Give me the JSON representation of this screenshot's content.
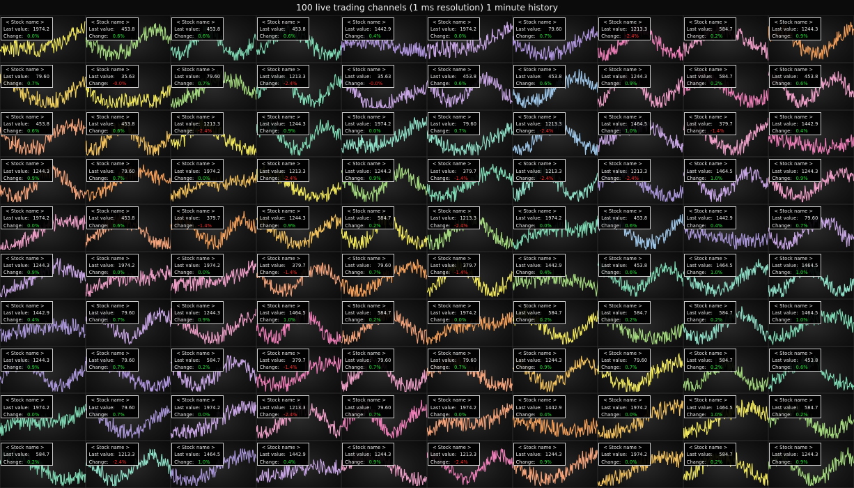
{
  "title": "100 live trading channels (1 ms resolution) 1 minute history",
  "labels": {
    "stock_name": "< Stock name >",
    "last_value": "Last value:",
    "change": "Change:"
  },
  "grid": {
    "rows": 10,
    "cols": 10
  },
  "colors": [
    "#f1e85c",
    "#a4d97e",
    "#7ed9b4",
    "#9ec6e8",
    "#c9a7e6",
    "#ef9fc7",
    "#f5a37a",
    "#e7c982",
    "#8fe0c8",
    "#a996d8",
    "#f48fb1",
    "#f2d36b",
    "#ff9f6b",
    "#83d7a5",
    "#c7a3e8"
  ],
  "channels": [
    {
      "value": "1974.2",
      "change": "0.0%",
      "color": "#f1e85c",
      "trend": "up"
    },
    {
      "value": "453.8",
      "change": "0.6%",
      "color": "#a4d97e",
      "trend": "down"
    },
    {
      "value": "453.8",
      "change": "0.6%",
      "color": "#7ed9b4",
      "trend": "wave"
    },
    {
      "value": "453.8",
      "change": "0.6%",
      "color": "#7ed9b4",
      "trend": "wave"
    },
    {
      "value": "1442.9",
      "change": "0.4%",
      "color": "#b197e0",
      "trend": "flat"
    },
    {
      "value": "1974.2",
      "change": "0.0%",
      "color": "#c9a7e6",
      "trend": "up"
    },
    {
      "value": "79.60",
      "change": "0.7%",
      "color": "#b197e0",
      "trend": "wave"
    },
    {
      "value": "1213.3",
      "change": "-2.4%",
      "color": "#ef7fb8",
      "trend": "wave"
    },
    {
      "value": "584.7",
      "change": "0.2%",
      "color": "#ef9fc7",
      "trend": "wave"
    },
    {
      "value": "1244.3",
      "change": "0.9%",
      "color": "#f5a05a",
      "trend": "wave"
    },
    {
      "value": "79.60",
      "change": "0.7%",
      "color": "#f1d15c",
      "trend": "wave"
    },
    {
      "value": "35.63",
      "change": "-0.0%",
      "color": "#f1e85c",
      "trend": "dip"
    },
    {
      "value": "79.60",
      "change": "0.7%",
      "color": "#a4d97e",
      "trend": "wave"
    },
    {
      "value": "1213.3",
      "change": "-2.4%",
      "color": "#7ed9b4",
      "trend": "wave"
    },
    {
      "value": "35.63",
      "change": "-0.0%",
      "color": "#c9a7e6",
      "trend": "dip"
    },
    {
      "value": "453.8",
      "change": "0.6%",
      "color": "#c9a7e6",
      "trend": "wave"
    },
    {
      "value": "453.8",
      "change": "0.6%",
      "color": "#9ec6e8",
      "trend": "wave"
    },
    {
      "value": "1244.3",
      "change": "0.9%",
      "color": "#ef9fc7",
      "trend": "wave"
    },
    {
      "value": "584.7",
      "change": "0.2%",
      "color": "#ef7fb8",
      "trend": "wave"
    },
    {
      "value": "453.8",
      "change": "0.6%",
      "color": "#ef9fc7",
      "trend": "wave"
    },
    {
      "value": "453.8",
      "change": "0.6%",
      "color": "#f5a37a",
      "trend": "wave"
    },
    {
      "value": "453.8",
      "change": "0.6%",
      "color": "#f2c15c",
      "trend": "wave"
    },
    {
      "value": "1213.3",
      "change": "-2.4%",
      "color": "#f1e85c",
      "trend": "wave"
    },
    {
      "value": "1244.3",
      "change": "0.9%",
      "color": "#7ed9b4",
      "trend": "wave"
    },
    {
      "value": "1974.2",
      "change": "0.0%",
      "color": "#8fe0c8",
      "trend": "up"
    },
    {
      "value": "79.60",
      "change": "0.7%",
      "color": "#8fe0c8",
      "trend": "wave"
    },
    {
      "value": "1213.3",
      "change": "-2.4%",
      "color": "#9ec6e8",
      "trend": "wave"
    },
    {
      "value": "1464.5",
      "change": "1.0%",
      "color": "#c9a7e6",
      "trend": "wave"
    },
    {
      "value": "379.7",
      "change": "-1.4%",
      "color": "#ef9fc7",
      "trend": "wave"
    },
    {
      "value": "1442.9",
      "change": "0.4%",
      "color": "#ef7fb8",
      "trend": "flat"
    },
    {
      "value": "1244.3",
      "change": "0.9%",
      "color": "#f5a37a",
      "trend": "wave"
    },
    {
      "value": "79.60",
      "change": "0.7%",
      "color": "#f5a05a",
      "trend": "wave"
    },
    {
      "value": "1974.2",
      "change": "0.0%",
      "color": "#f2c15c",
      "trend": "up"
    },
    {
      "value": "1213.3",
      "change": "-2.4%",
      "color": "#f1e85c",
      "trend": "wave"
    },
    {
      "value": "1244.3",
      "change": "0.9%",
      "color": "#a4d97e",
      "trend": "wave"
    },
    {
      "value": "379.7",
      "change": "-1.4%",
      "color": "#7ed9b4",
      "trend": "wave"
    },
    {
      "value": "1213.3",
      "change": "-2.4%",
      "color": "#8fe0c8",
      "trend": "wave"
    },
    {
      "value": "1213.3",
      "change": "-2.4%",
      "color": "#a996d8",
      "trend": "wave"
    },
    {
      "value": "1464.5",
      "change": "1.0%",
      "color": "#c9a7e6",
      "trend": "wave"
    },
    {
      "value": "1244.3",
      "change": "0.9%",
      "color": "#ef9fc7",
      "trend": "wave"
    },
    {
      "value": "1974.2",
      "change": "0.0%",
      "color": "#ef9fc7",
      "trend": "up"
    },
    {
      "value": "453.8",
      "change": "0.6%",
      "color": "#f5a37a",
      "trend": "wave"
    },
    {
      "value": "379.7",
      "change": "-1.4%",
      "color": "#f5a05a",
      "trend": "wave"
    },
    {
      "value": "1244.3",
      "change": "0.9%",
      "color": "#f2c15c",
      "trend": "wave"
    },
    {
      "value": "584.7",
      "change": "0.2%",
      "color": "#f1e85c",
      "trend": "wave"
    },
    {
      "value": "1213.3",
      "change": "-2.4%",
      "color": "#a4d97e",
      "trend": "wave"
    },
    {
      "value": "1974.2",
      "change": "0.0%",
      "color": "#7ed9b4",
      "trend": "up"
    },
    {
      "value": "453.8",
      "change": "0.6%",
      "color": "#9ec6e8",
      "trend": "wave"
    },
    {
      "value": "1442.9",
      "change": "0.4%",
      "color": "#a996d8",
      "trend": "flat"
    },
    {
      "value": "79.60",
      "change": "0.7%",
      "color": "#c9a7e6",
      "trend": "wave"
    },
    {
      "value": "1244.3",
      "change": "0.9%",
      "color": "#c9a7e6",
      "trend": "wave"
    },
    {
      "value": "1974.2",
      "change": "0.0%",
      "color": "#ef9fc7",
      "trend": "up"
    },
    {
      "value": "1974.2",
      "change": "0.0%",
      "color": "#ef9fc7",
      "trend": "up"
    },
    {
      "value": "379.7",
      "change": "-1.4%",
      "color": "#f5a37a",
      "trend": "wave"
    },
    {
      "value": "79.60",
      "change": "0.7%",
      "color": "#f5a05a",
      "trend": "wave"
    },
    {
      "value": "379.7",
      "change": "-1.4%",
      "color": "#f1e85c",
      "trend": "wave"
    },
    {
      "value": "1442.9",
      "change": "0.4%",
      "color": "#a4d97e",
      "trend": "flat"
    },
    {
      "value": "453.8",
      "change": "0.6%",
      "color": "#7ed9b4",
      "trend": "wave"
    },
    {
      "value": "1464.5",
      "change": "1.0%",
      "color": "#8fe0c8",
      "trend": "wave"
    },
    {
      "value": "1464.5",
      "change": "1.0%",
      "color": "#8fe0c8",
      "trend": "wave"
    },
    {
      "value": "1442.9",
      "change": "0.4%",
      "color": "#a996d8",
      "trend": "flat"
    },
    {
      "value": "79.60",
      "change": "0.7%",
      "color": "#c9a7e6",
      "trend": "wave"
    },
    {
      "value": "1244.3",
      "change": "0.9%",
      "color": "#ef9fc7",
      "trend": "wave"
    },
    {
      "value": "1464.5",
      "change": "1.0%",
      "color": "#ef7fb8",
      "trend": "wave"
    },
    {
      "value": "584.7",
      "change": "0.2%",
      "color": "#f5a37a",
      "trend": "wave"
    },
    {
      "value": "1974.2",
      "change": "0.0%",
      "color": "#f5a05a",
      "trend": "up"
    },
    {
      "value": "584.7",
      "change": "0.2%",
      "color": "#f1e85c",
      "trend": "wave"
    },
    {
      "value": "584.7",
      "change": "0.2%",
      "color": "#a4d97e",
      "trend": "wave"
    },
    {
      "value": "584.7",
      "change": "0.2%",
      "color": "#8fe0c8",
      "trend": "wave"
    },
    {
      "value": "1464.5",
      "change": "1.0%",
      "color": "#7ed9b4",
      "trend": "wave"
    },
    {
      "value": "1244.3",
      "change": "0.9%",
      "color": "#a996d8",
      "trend": "wave"
    },
    {
      "value": "79.60",
      "change": "0.7%",
      "color": "#b197e0",
      "trend": "wave"
    },
    {
      "value": "584.7",
      "change": "0.2%",
      "color": "#c9a7e6",
      "trend": "wave"
    },
    {
      "value": "379.7",
      "change": "-1.4%",
      "color": "#ef7fb8",
      "trend": "wave"
    },
    {
      "value": "79.60",
      "change": "0.7%",
      "color": "#ef9fc7",
      "trend": "wave"
    },
    {
      "value": "79.60",
      "change": "0.7%",
      "color": "#f5a37a",
      "trend": "wave"
    },
    {
      "value": "1244.3",
      "change": "0.9%",
      "color": "#f2c15c",
      "trend": "wave"
    },
    {
      "value": "79.60",
      "change": "0.7%",
      "color": "#f1e85c",
      "trend": "wave"
    },
    {
      "value": "584.7",
      "change": "0.2%",
      "color": "#a4d97e",
      "trend": "wave"
    },
    {
      "value": "453.8",
      "change": "0.6%",
      "color": "#7ed9b4",
      "trend": "wave"
    },
    {
      "value": "1974.2",
      "change": "0.0%",
      "color": "#7ed9b4",
      "trend": "up"
    },
    {
      "value": "79.60",
      "change": "0.7%",
      "color": "#a996d8",
      "trend": "wave"
    },
    {
      "value": "1974.2",
      "change": "0.0%",
      "color": "#c9a7e6",
      "trend": "up"
    },
    {
      "value": "1213.3",
      "change": "-2.4%",
      "color": "#ef9fc7",
      "trend": "wave"
    },
    {
      "value": "79.60",
      "change": "0.7%",
      "color": "#ef7fb8",
      "trend": "wave"
    },
    {
      "value": "1974.2",
      "change": "0.0%",
      "color": "#f5a37a",
      "trend": "up"
    },
    {
      "value": "1442.9",
      "change": "0.4%",
      "color": "#f5a05a",
      "trend": "flat"
    },
    {
      "value": "1974.2",
      "change": "0.0%",
      "color": "#f2c15c",
      "trend": "up"
    },
    {
      "value": "1464.5",
      "change": "1.0%",
      "color": "#f1e85c",
      "trend": "wave"
    },
    {
      "value": "584.7",
      "change": "0.2%",
      "color": "#a4d97e",
      "trend": "wave"
    },
    {
      "value": "584.7",
      "change": "0.2%",
      "color": "#7ed9b4",
      "trend": "wave"
    },
    {
      "value": "1213.3",
      "change": "-2.4%",
      "color": "#8fe0c8",
      "trend": "wave"
    },
    {
      "value": "1464.5",
      "change": "1.0%",
      "color": "#a996d8",
      "trend": "wave"
    },
    {
      "value": "1442.9",
      "change": "0.4%",
      "color": "#c9a7e6",
      "trend": "flat"
    },
    {
      "value": "1244.3",
      "change": "0.9%",
      "color": "#ef9fc7",
      "trend": "wave"
    },
    {
      "value": "1213.3",
      "change": "-2.4%",
      "color": "#ef7fb8",
      "trend": "wave"
    },
    {
      "value": "1244.3",
      "change": "0.9%",
      "color": "#f5a37a",
      "trend": "wave"
    },
    {
      "value": "1974.2",
      "change": "0.0%",
      "color": "#f2c15c",
      "trend": "up"
    },
    {
      "value": "584.7",
      "change": "0.2%",
      "color": "#f1e85c",
      "trend": "wave"
    },
    {
      "value": "1244.3",
      "change": "0.9%",
      "color": "#a4d97e",
      "trend": "wave"
    }
  ]
}
